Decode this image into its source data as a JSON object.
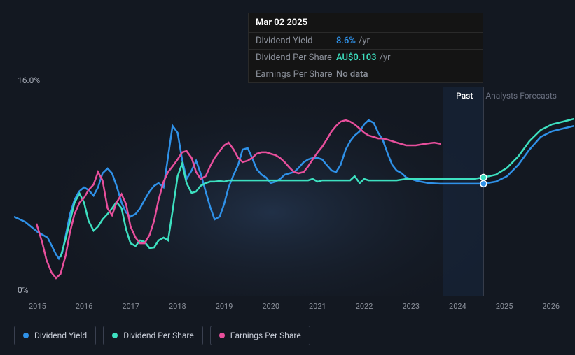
{
  "chart": {
    "type": "line",
    "background_color": "#131821",
    "plot_bg_gradient": [
      "#1a2432",
      "#131821"
    ],
    "grid_color": "#2a3040",
    "ylim": [
      0,
      16
    ],
    "y_top_label": "16.0%",
    "y_bottom_label": "0%",
    "x_categories": [
      "2015",
      "2016",
      "2017",
      "2018",
      "2019",
      "2020",
      "2021",
      "2022",
      "2023",
      "2024",
      "2025",
      "2026"
    ],
    "x_tick_count": 12,
    "period_labels": {
      "past": "Past",
      "forecast": "Analysts Forecasts"
    },
    "forecast_start_x": 0.838,
    "hover_x": 0.838,
    "hover_band_width": 0.072,
    "series": [
      {
        "name": "Dividend Yield",
        "color": "#2f91e8",
        "marker_at_hover": true,
        "points": [
          [
            0.0,
            0.38
          ],
          [
            0.02,
            0.355
          ],
          [
            0.042,
            0.307
          ],
          [
            0.06,
            0.28
          ],
          [
            0.075,
            0.2
          ],
          [
            0.08,
            0.18
          ],
          [
            0.086,
            0.207
          ],
          [
            0.093,
            0.3
          ],
          [
            0.1,
            0.393
          ],
          [
            0.108,
            0.46
          ],
          [
            0.116,
            0.5
          ],
          [
            0.125,
            0.52
          ],
          [
            0.133,
            0.507
          ],
          [
            0.142,
            0.48
          ],
          [
            0.15,
            0.52
          ],
          [
            0.158,
            0.587
          ],
          [
            0.167,
            0.61
          ],
          [
            0.175,
            0.587
          ],
          [
            0.183,
            0.527
          ],
          [
            0.192,
            0.447
          ],
          [
            0.2,
            0.4
          ],
          [
            0.208,
            0.38
          ],
          [
            0.217,
            0.393
          ],
          [
            0.225,
            0.42
          ],
          [
            0.233,
            0.46
          ],
          [
            0.242,
            0.5
          ],
          [
            0.25,
            0.527
          ],
          [
            0.258,
            0.54
          ],
          [
            0.267,
            0.52
          ],
          [
            0.275,
            0.667
          ],
          [
            0.283,
            0.813
          ],
          [
            0.292,
            0.78
          ],
          [
            0.3,
            0.653
          ],
          [
            0.308,
            0.56
          ],
          [
            0.317,
            0.6
          ],
          [
            0.325,
            0.647
          ],
          [
            0.333,
            0.587
          ],
          [
            0.342,
            0.5
          ],
          [
            0.35,
            0.427
          ],
          [
            0.358,
            0.367
          ],
          [
            0.367,
            0.38
          ],
          [
            0.375,
            0.44
          ],
          [
            0.383,
            0.52
          ],
          [
            0.392,
            0.58
          ],
          [
            0.4,
            0.627
          ],
          [
            0.408,
            0.7
          ],
          [
            0.417,
            0.707
          ],
          [
            0.425,
            0.66
          ],
          [
            0.433,
            0.607
          ],
          [
            0.442,
            0.58
          ],
          [
            0.45,
            0.567
          ],
          [
            0.458,
            0.54
          ],
          [
            0.467,
            0.547
          ],
          [
            0.475,
            0.56
          ],
          [
            0.483,
            0.58
          ],
          [
            0.492,
            0.587
          ],
          [
            0.5,
            0.593
          ],
          [
            0.508,
            0.613
          ],
          [
            0.517,
            0.64
          ],
          [
            0.525,
            0.653
          ],
          [
            0.533,
            0.66
          ],
          [
            0.542,
            0.66
          ],
          [
            0.55,
            0.653
          ],
          [
            0.558,
            0.627
          ],
          [
            0.567,
            0.6
          ],
          [
            0.575,
            0.593
          ],
          [
            0.583,
            0.627
          ],
          [
            0.592,
            0.7
          ],
          [
            0.6,
            0.74
          ],
          [
            0.608,
            0.767
          ],
          [
            0.617,
            0.787
          ],
          [
            0.625,
            0.82
          ],
          [
            0.633,
            0.84
          ],
          [
            0.642,
            0.827
          ],
          [
            0.65,
            0.78
          ],
          [
            0.658,
            0.747
          ],
          [
            0.667,
            0.68
          ],
          [
            0.675,
            0.627
          ],
          [
            0.683,
            0.6
          ],
          [
            0.692,
            0.587
          ],
          [
            0.7,
            0.567
          ],
          [
            0.72,
            0.55
          ],
          [
            0.74,
            0.54
          ],
          [
            0.76,
            0.537
          ],
          [
            0.78,
            0.537
          ],
          [
            0.8,
            0.537
          ],
          [
            0.82,
            0.537
          ],
          [
            0.838,
            0.537
          ],
          [
            0.86,
            0.547
          ],
          [
            0.88,
            0.573
          ],
          [
            0.9,
            0.627
          ],
          [
            0.92,
            0.7
          ],
          [
            0.94,
            0.76
          ],
          [
            0.96,
            0.787
          ],
          [
            0.98,
            0.8
          ],
          [
            1.0,
            0.813
          ]
        ]
      },
      {
        "name": "Dividend Per Share",
        "color": "#3de0c0",
        "marker_at_hover": true,
        "points": [
          [
            0.083,
            0.187
          ],
          [
            0.092,
            0.273
          ],
          [
            0.1,
            0.36
          ],
          [
            0.108,
            0.447
          ],
          [
            0.117,
            0.49
          ],
          [
            0.125,
            0.447
          ],
          [
            0.133,
            0.36
          ],
          [
            0.142,
            0.313
          ],
          [
            0.15,
            0.333
          ],
          [
            0.158,
            0.367
          ],
          [
            0.167,
            0.393
          ],
          [
            0.175,
            0.42
          ],
          [
            0.183,
            0.45
          ],
          [
            0.192,
            0.42
          ],
          [
            0.2,
            0.32
          ],
          [
            0.208,
            0.253
          ],
          [
            0.217,
            0.24
          ],
          [
            0.225,
            0.267
          ],
          [
            0.233,
            0.26
          ],
          [
            0.242,
            0.23
          ],
          [
            0.25,
            0.233
          ],
          [
            0.258,
            0.267
          ],
          [
            0.267,
            0.28
          ],
          [
            0.275,
            0.267
          ],
          [
            0.283,
            0.407
          ],
          [
            0.292,
            0.573
          ],
          [
            0.3,
            0.633
          ],
          [
            0.308,
            0.54
          ],
          [
            0.317,
            0.493
          ],
          [
            0.325,
            0.5
          ],
          [
            0.333,
            0.527
          ],
          [
            0.342,
            0.54
          ],
          [
            0.35,
            0.547
          ],
          [
            0.358,
            0.547
          ],
          [
            0.367,
            0.55
          ],
          [
            0.375,
            0.547
          ],
          [
            0.383,
            0.553
          ],
          [
            0.392,
            0.553
          ],
          [
            0.4,
            0.553
          ],
          [
            0.408,
            0.553
          ],
          [
            0.417,
            0.553
          ],
          [
            0.425,
            0.553
          ],
          [
            0.433,
            0.553
          ],
          [
            0.442,
            0.553
          ],
          [
            0.45,
            0.553
          ],
          [
            0.458,
            0.553
          ],
          [
            0.467,
            0.553
          ],
          [
            0.475,
            0.553
          ],
          [
            0.483,
            0.553
          ],
          [
            0.492,
            0.553
          ],
          [
            0.5,
            0.553
          ],
          [
            0.508,
            0.553
          ],
          [
            0.517,
            0.553
          ],
          [
            0.525,
            0.553
          ],
          [
            0.533,
            0.56
          ],
          [
            0.542,
            0.547
          ],
          [
            0.55,
            0.553
          ],
          [
            0.558,
            0.553
          ],
          [
            0.567,
            0.553
          ],
          [
            0.575,
            0.553
          ],
          [
            0.583,
            0.553
          ],
          [
            0.592,
            0.553
          ],
          [
            0.6,
            0.553
          ],
          [
            0.608,
            0.573
          ],
          [
            0.617,
            0.54
          ],
          [
            0.625,
            0.56
          ],
          [
            0.633,
            0.553
          ],
          [
            0.642,
            0.553
          ],
          [
            0.65,
            0.553
          ],
          [
            0.658,
            0.553
          ],
          [
            0.667,
            0.553
          ],
          [
            0.683,
            0.553
          ],
          [
            0.7,
            0.56
          ],
          [
            0.717,
            0.56
          ],
          [
            0.733,
            0.56
          ],
          [
            0.75,
            0.56
          ],
          [
            0.767,
            0.56
          ],
          [
            0.783,
            0.56
          ],
          [
            0.8,
            0.56
          ],
          [
            0.82,
            0.56
          ],
          [
            0.838,
            0.567
          ],
          [
            0.86,
            0.58
          ],
          [
            0.88,
            0.613
          ],
          [
            0.9,
            0.667
          ],
          [
            0.92,
            0.74
          ],
          [
            0.94,
            0.793
          ],
          [
            0.96,
            0.82
          ],
          [
            0.98,
            0.833
          ],
          [
            1.0,
            0.847
          ]
        ]
      },
      {
        "name": "Earnings Per Share",
        "color": "#e84f9c",
        "marker_at_hover": false,
        "points": [
          [
            0.04,
            0.347
          ],
          [
            0.05,
            0.26
          ],
          [
            0.058,
            0.173
          ],
          [
            0.067,
            0.113
          ],
          [
            0.075,
            0.087
          ],
          [
            0.083,
            0.107
          ],
          [
            0.092,
            0.193
          ],
          [
            0.1,
            0.307
          ],
          [
            0.108,
            0.393
          ],
          [
            0.117,
            0.447
          ],
          [
            0.125,
            0.47
          ],
          [
            0.133,
            0.507
          ],
          [
            0.142,
            0.533
          ],
          [
            0.15,
            0.593
          ],
          [
            0.158,
            0.553
          ],
          [
            0.167,
            0.42
          ],
          [
            0.175,
            0.387
          ],
          [
            0.183,
            0.447
          ],
          [
            0.192,
            0.487
          ],
          [
            0.2,
            0.44
          ],
          [
            0.208,
            0.333
          ],
          [
            0.217,
            0.28
          ],
          [
            0.225,
            0.253
          ],
          [
            0.233,
            0.253
          ],
          [
            0.242,
            0.293
          ],
          [
            0.25,
            0.36
          ],
          [
            0.258,
            0.46
          ],
          [
            0.267,
            0.547
          ],
          [
            0.275,
            0.593
          ],
          [
            0.283,
            0.62
          ],
          [
            0.292,
            0.653
          ],
          [
            0.3,
            0.687
          ],
          [
            0.308,
            0.693
          ],
          [
            0.317,
            0.66
          ],
          [
            0.325,
            0.593
          ],
          [
            0.333,
            0.56
          ],
          [
            0.342,
            0.573
          ],
          [
            0.35,
            0.62
          ],
          [
            0.358,
            0.66
          ],
          [
            0.367,
            0.693
          ],
          [
            0.375,
            0.72
          ],
          [
            0.383,
            0.733
          ],
          [
            0.392,
            0.7
          ],
          [
            0.4,
            0.66
          ],
          [
            0.408,
            0.64
          ],
          [
            0.417,
            0.647
          ],
          [
            0.425,
            0.66
          ],
          [
            0.433,
            0.68
          ],
          [
            0.442,
            0.687
          ],
          [
            0.45,
            0.687
          ],
          [
            0.458,
            0.68
          ],
          [
            0.467,
            0.673
          ],
          [
            0.475,
            0.66
          ],
          [
            0.483,
            0.64
          ],
          [
            0.492,
            0.613
          ],
          [
            0.5,
            0.593
          ],
          [
            0.508,
            0.587
          ],
          [
            0.517,
            0.593
          ],
          [
            0.525,
            0.62
          ],
          [
            0.533,
            0.653
          ],
          [
            0.542,
            0.687
          ],
          [
            0.55,
            0.713
          ],
          [
            0.558,
            0.747
          ],
          [
            0.567,
            0.787
          ],
          [
            0.575,
            0.813
          ],
          [
            0.583,
            0.833
          ],
          [
            0.592,
            0.84
          ],
          [
            0.6,
            0.833
          ],
          [
            0.608,
            0.82
          ],
          [
            0.617,
            0.8
          ],
          [
            0.625,
            0.78
          ],
          [
            0.633,
            0.767
          ],
          [
            0.642,
            0.76
          ],
          [
            0.65,
            0.753
          ],
          [
            0.658,
            0.753
          ],
          [
            0.667,
            0.747
          ],
          [
            0.683,
            0.733
          ],
          [
            0.7,
            0.72
          ],
          [
            0.717,
            0.72
          ],
          [
            0.733,
            0.727
          ],
          [
            0.75,
            0.733
          ],
          [
            0.762,
            0.727
          ]
        ]
      }
    ]
  },
  "tooltip": {
    "date": "Mar 02 2025",
    "rows": [
      {
        "label": "Dividend Yield",
        "value": "8.6%",
        "unit": "/yr",
        "value_color": "#2f91e8"
      },
      {
        "label": "Dividend Per Share",
        "value": "AU$0.103",
        "unit": "/yr",
        "value_color": "#3de0c0"
      },
      {
        "label": "Earnings Per Share",
        "value": "No data",
        "unit": "",
        "value_color": "#8a8f99"
      }
    ]
  },
  "legend": [
    {
      "label": "Dividend Yield",
      "color": "#2f91e8"
    },
    {
      "label": "Dividend Per Share",
      "color": "#3de0c0"
    },
    {
      "label": "Earnings Per Share",
      "color": "#e84f9c"
    }
  ]
}
